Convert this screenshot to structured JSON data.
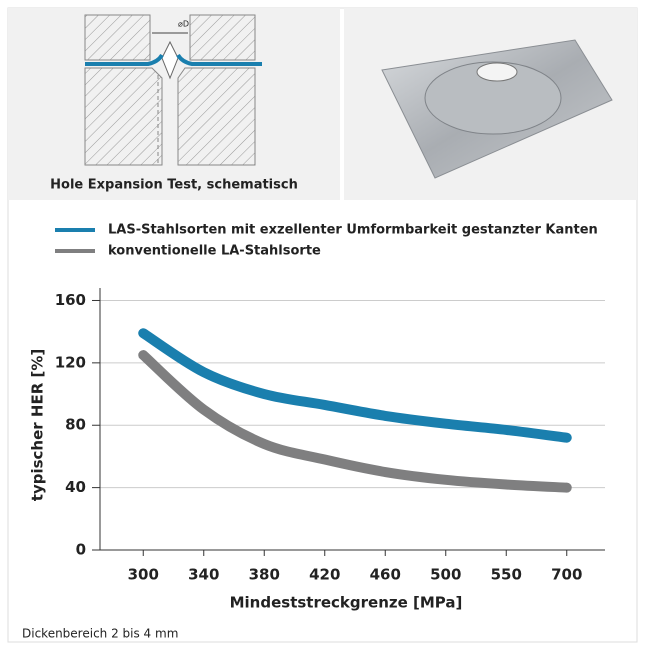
{
  "header": {
    "schematic_caption": "Hole Expansion Test, schematisch",
    "diameter_label": "⌀D"
  },
  "chart_data": {
    "type": "line",
    "categories": [
      "300",
      "340",
      "380",
      "420",
      "460",
      "500",
      "550",
      "700"
    ],
    "series": [
      {
        "name": "LAS-Stahlsorten mit exzellenter Umformbarkeit gestanzter Kanten",
        "color": "#1a7fae",
        "values": [
          139,
          114,
          100,
          93,
          86,
          81,
          77,
          72
        ]
      },
      {
        "name": "konventionelle LA-Stahlsorte",
        "color": "#7f7f80",
        "values": [
          125,
          90,
          68,
          58,
          50,
          45,
          42,
          40
        ]
      }
    ],
    "xlabel": "Mindeststreckgrenze [MPa]",
    "ylabel": "typischer HER [%]",
    "ylim": [
      0,
      168
    ],
    "yticks": [
      0,
      40,
      80,
      120,
      160
    ],
    "grid": true
  },
  "footnote": "Dickenbereich 2 bis 4 mm"
}
